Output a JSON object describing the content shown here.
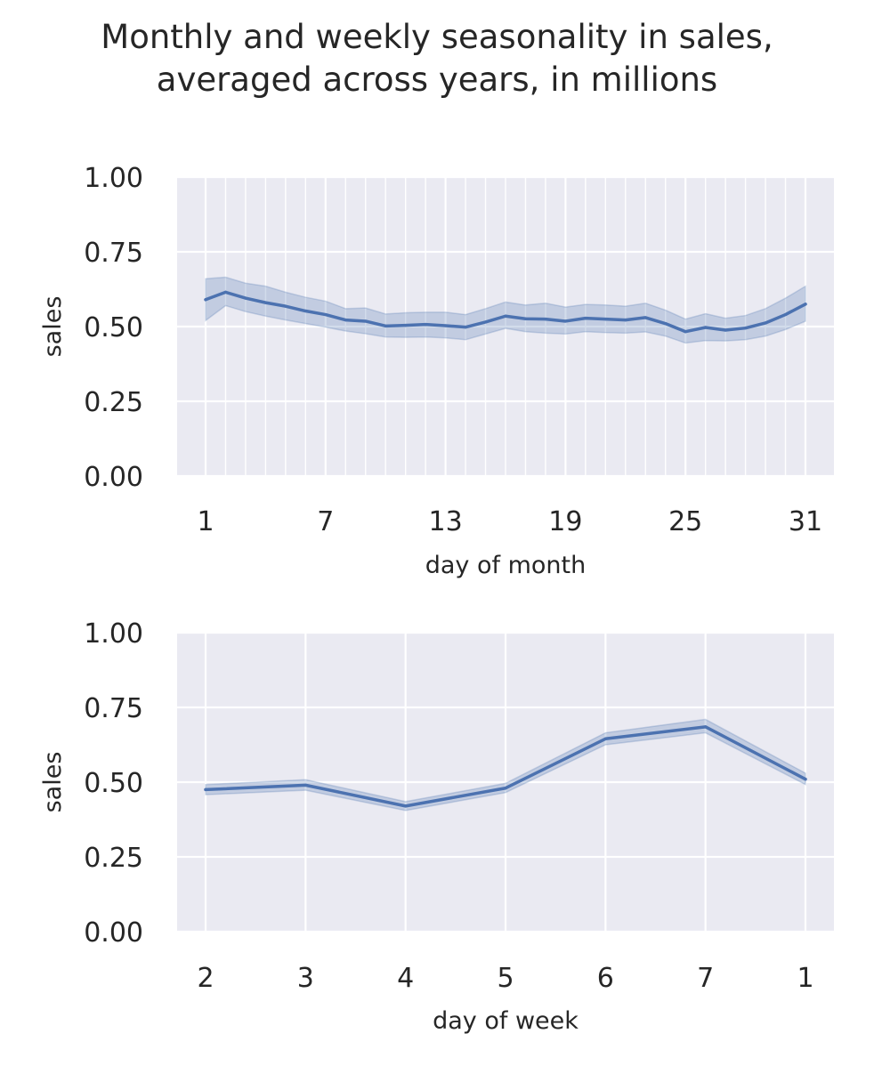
{
  "figure": {
    "title_line1": "Monthly and weekly seasonality in sales,",
    "title_line2": "averaged across years, in millions"
  },
  "colors": {
    "line": "#4c72b0",
    "band": "#4c72b0",
    "panel_background": "#eaeaf2",
    "grid": "#ffffff"
  },
  "chart_data": [
    {
      "type": "line",
      "title": "",
      "xlabel": "day of month",
      "ylabel": "sales",
      "ylim": [
        0,
        1
      ],
      "yticks": [
        "0.00",
        "0.25",
        "0.50",
        "0.75",
        "1.00"
      ],
      "xticks": [
        "1",
        "7",
        "13",
        "19",
        "25",
        "31"
      ],
      "grid": true,
      "legend": "none",
      "x": [
        1,
        2,
        3,
        4,
        5,
        6,
        7,
        8,
        9,
        10,
        11,
        12,
        13,
        14,
        15,
        16,
        17,
        18,
        19,
        20,
        21,
        22,
        23,
        24,
        25,
        26,
        27,
        28,
        29,
        30,
        31
      ],
      "series": [
        {
          "values": [
            0.59,
            0.615,
            0.595,
            0.58,
            0.568,
            0.552,
            0.54,
            0.522,
            0.518,
            0.502,
            0.504,
            0.507,
            0.503,
            0.498,
            0.515,
            0.535,
            0.526,
            0.525,
            0.518,
            0.528,
            0.525,
            0.522,
            0.53,
            0.51,
            0.483,
            0.497,
            0.488,
            0.495,
            0.512,
            0.54,
            0.575
          ],
          "ci_upper": [
            0.66,
            0.665,
            0.645,
            0.635,
            0.615,
            0.598,
            0.585,
            0.56,
            0.562,
            0.542,
            0.546,
            0.548,
            0.548,
            0.54,
            0.56,
            0.582,
            0.572,
            0.578,
            0.565,
            0.574,
            0.572,
            0.568,
            0.578,
            0.555,
            0.525,
            0.543,
            0.528,
            0.537,
            0.56,
            0.595,
            0.635
          ],
          "ci_lower": [
            0.52,
            0.57,
            0.55,
            0.535,
            0.522,
            0.51,
            0.498,
            0.485,
            0.476,
            0.465,
            0.464,
            0.465,
            0.462,
            0.456,
            0.475,
            0.494,
            0.483,
            0.478,
            0.475,
            0.483,
            0.48,
            0.478,
            0.482,
            0.468,
            0.445,
            0.453,
            0.452,
            0.456,
            0.468,
            0.49,
            0.518
          ]
        }
      ]
    },
    {
      "type": "line",
      "title": "",
      "xlabel": "day of week",
      "ylabel": "sales",
      "ylim": [
        0,
        1
      ],
      "yticks": [
        "0.00",
        "0.25",
        "0.50",
        "0.75",
        "1.00"
      ],
      "grid": true,
      "legend": "none",
      "categories": [
        "2",
        "3",
        "4",
        "5",
        "6",
        "7",
        "1"
      ],
      "series": [
        {
          "values": [
            0.475,
            0.49,
            0.42,
            0.48,
            0.645,
            0.685,
            0.51
          ],
          "ci_upper": [
            0.492,
            0.508,
            0.435,
            0.496,
            0.665,
            0.71,
            0.53
          ],
          "ci_lower": [
            0.458,
            0.473,
            0.405,
            0.465,
            0.625,
            0.665,
            0.492
          ]
        }
      ]
    }
  ]
}
